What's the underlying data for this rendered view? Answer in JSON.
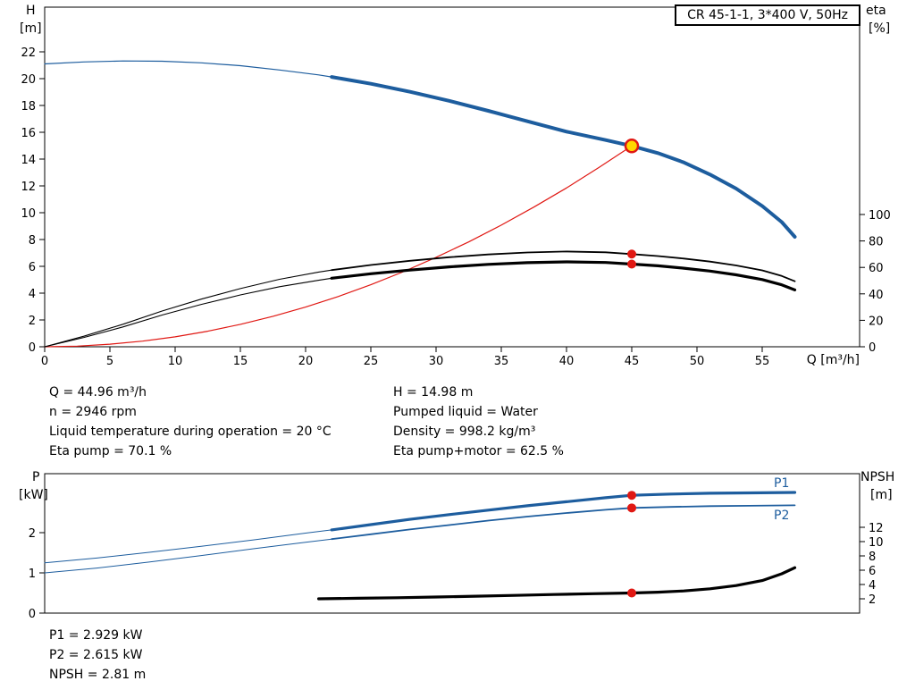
{
  "title_box": {
    "text": "CR 45-1-1, 3*400 V, 50Hz"
  },
  "colors": {
    "blue": "#1d5d9e",
    "black": "#000000",
    "red": "#e01813",
    "duty_fill": "#ffd800",
    "frame": "#000000"
  },
  "axis_labels": {
    "h": "H",
    "h_unit": "[m]",
    "eta": "eta",
    "eta_unit": "[%]",
    "q": "Q [m³/h]",
    "p": "P",
    "p_unit": "[kW]",
    "npsh": "NPSH",
    "npsh_unit": "[m]"
  },
  "info_left": {
    "q": "Q = 44.96 m³/h",
    "n": "n = 2946 rpm",
    "temp": "Liquid temperature during operation = 20 °C",
    "eta_pump": "Eta pump = 70.1 %"
  },
  "info_right": {
    "h": "H = 14.98 m",
    "liquid": "Pumped liquid = Water",
    "density": "Density = 998.2 kg/m³",
    "eta_pump_motor": "Eta pump+motor = 62.5 %"
  },
  "info_bottom": {
    "p1": "P1 = 2.929 kW",
    "p2": "P2 = 2.615 kW",
    "npsh": "NPSH = 2.81 m"
  },
  "curve_labels": {
    "p1": "P1",
    "p2": "P2"
  },
  "operating_point": {
    "q_m3h": 44.96,
    "h_m": 14.98,
    "n_rpm": 2946,
    "eta_pump_pct": 70.1,
    "eta_pump_motor_pct": 62.5,
    "p1_kw": 2.929,
    "p2_kw": 2.615,
    "npsh_m": 2.81,
    "liquid": "Water",
    "temp_c": 20,
    "density_kg_m3": 998.2
  },
  "chart_data": [
    {
      "type": "line",
      "name": "head-efficiency-chart",
      "x_axis": {
        "label": "Q [m³/h]",
        "ticks": [
          0,
          5,
          10,
          15,
          20,
          25,
          30,
          35,
          40,
          45,
          50,
          55
        ],
        "max": 62.5
      },
      "y_left": {
        "label": "H [m]",
        "ticks": [
          0,
          2,
          4,
          6,
          8,
          10,
          12,
          14,
          16,
          18,
          20,
          22
        ],
        "max": 25.3
      },
      "y_right": {
        "label": "eta [%]",
        "ticks": [
          0,
          20,
          40,
          60,
          80,
          100
        ]
      },
      "series": [
        {
          "name": "system-curve",
          "color": "red",
          "axis": "left",
          "thin": 1.2,
          "thick": 1.2,
          "split_q": null,
          "points": [
            [
              0,
              0
            ],
            [
              2.5,
              0.05
            ],
            [
              5,
              0.19
            ],
            [
              7.5,
              0.42
            ],
            [
              10,
              0.74
            ],
            [
              12.5,
              1.16
            ],
            [
              15,
              1.67
            ],
            [
              17.5,
              2.27
            ],
            [
              20,
              2.96
            ],
            [
              22.5,
              3.75
            ],
            [
              25,
              4.63
            ],
            [
              27.5,
              5.6
            ],
            [
              30,
              6.67
            ],
            [
              32.5,
              7.82
            ],
            [
              35,
              9.07
            ],
            [
              37.5,
              10.42
            ],
            [
              40,
              11.85
            ],
            [
              42.5,
              13.38
            ],
            [
              45,
              14.98
            ]
          ]
        },
        {
          "name": "eta-pump",
          "color": "black",
          "axis": "right",
          "thin": 1.1,
          "thick": 1.8,
          "split_q": 22,
          "points": [
            [
              0,
              0
            ],
            [
              3,
              8
            ],
            [
              6,
              17
            ],
            [
              9,
              27
            ],
            [
              12,
              36
            ],
            [
              15,
              44
            ],
            [
              18,
              51
            ],
            [
              21,
              56.5
            ],
            [
              22,
              58
            ],
            [
              25,
              61.8
            ],
            [
              28,
              65
            ],
            [
              31,
              67.7
            ],
            [
              34,
              69.8
            ],
            [
              37,
              71.3
            ],
            [
              40,
              72
            ],
            [
              43,
              71.4
            ],
            [
              45,
              70.1
            ],
            [
              47,
              68.6
            ],
            [
              49,
              66.7
            ],
            [
              51,
              64.4
            ],
            [
              53,
              61.5
            ],
            [
              55,
              57.8
            ],
            [
              56.5,
              53.5
            ],
            [
              57.5,
              49.5
            ]
          ]
        },
        {
          "name": "eta-pump-motor",
          "color": "black",
          "axis": "right",
          "thin": 1.1,
          "thick": 3.2,
          "split_q": 22,
          "points": [
            [
              0,
              0
            ],
            [
              3,
              7
            ],
            [
              6,
              15
            ],
            [
              9,
              24
            ],
            [
              12,
              32
            ],
            [
              15,
              39.2
            ],
            [
              18,
              45.4
            ],
            [
              21,
              50.3
            ],
            [
              22,
              51.8
            ],
            [
              25,
              55.2
            ],
            [
              28,
              58
            ],
            [
              31,
              60.4
            ],
            [
              34,
              62.3
            ],
            [
              37,
              63.6
            ],
            [
              40,
              64.2
            ],
            [
              43,
              63.7
            ],
            [
              45,
              62.5
            ],
            [
              47,
              61.2
            ],
            [
              49,
              59.4
            ],
            [
              51,
              57.2
            ],
            [
              53,
              54.4
            ],
            [
              55,
              50.8
            ],
            [
              56.5,
              46.8
            ],
            [
              57.5,
              43
            ]
          ]
        },
        {
          "name": "head",
          "color": "blue",
          "axis": "left",
          "thin": 1.2,
          "thick": 4,
          "split_q": 22,
          "points": [
            [
              0,
              21.1
            ],
            [
              3,
              21.25
            ],
            [
              6,
              21.32
            ],
            [
              9,
              21.3
            ],
            [
              12,
              21.18
            ],
            [
              15,
              20.97
            ],
            [
              18,
              20.65
            ],
            [
              21,
              20.28
            ],
            [
              22,
              20.13
            ],
            [
              25,
              19.62
            ],
            [
              28,
              19.02
            ],
            [
              31,
              18.35
            ],
            [
              34,
              17.6
            ],
            [
              37,
              16.82
            ],
            [
              40,
              16.05
            ],
            [
              43,
              15.42
            ],
            [
              45,
              14.98
            ],
            [
              47,
              14.45
            ],
            [
              49,
              13.75
            ],
            [
              51,
              12.85
            ],
            [
              53,
              11.8
            ],
            [
              55,
              10.5
            ],
            [
              56.5,
              9.3
            ],
            [
              57.5,
              8.2
            ]
          ]
        }
      ],
      "markers": [
        {
          "style": "duty",
          "q": 45,
          "value": 14.98,
          "axis": "left"
        },
        {
          "style": "dot",
          "q": 45,
          "value": 70.1,
          "axis": "right"
        },
        {
          "style": "dot",
          "q": 45,
          "value": 62.5,
          "axis": "right"
        }
      ]
    },
    {
      "type": "line",
      "name": "power-npsh-chart",
      "x_axis": {
        "label": "Q [m³/h]",
        "ticks": [],
        "max": 62.5
      },
      "y_left": {
        "label": "P [kW]",
        "ticks": [
          0,
          1,
          2
        ],
        "max": 3.5
      },
      "y_right": {
        "label": "NPSH [m]",
        "ticks": [
          2,
          4,
          6,
          8,
          10,
          12
        ]
      },
      "series": [
        {
          "name": "npsh",
          "color": "black",
          "axis": "right",
          "thin": 3.2,
          "thick": 3.2,
          "split_q": null,
          "points": [
            [
              21,
              2.0
            ],
            [
              24,
              2.07
            ],
            [
              27,
              2.15
            ],
            [
              30,
              2.25
            ],
            [
              33,
              2.36
            ],
            [
              36,
              2.48
            ],
            [
              39,
              2.6
            ],
            [
              42,
              2.71
            ],
            [
              45,
              2.81
            ],
            [
              47,
              2.93
            ],
            [
              49,
              3.1
            ],
            [
              51,
              3.4
            ],
            [
              53,
              3.85
            ],
            [
              55,
              4.55
            ],
            [
              56.5,
              5.5
            ],
            [
              57.5,
              6.35
            ]
          ]
        },
        {
          "name": "p2",
          "color": "blue",
          "axis": "left",
          "thin": 1,
          "thick": 1.8,
          "split_q": 22,
          "points": [
            [
              0,
              1.0
            ],
            [
              4,
              1.12
            ],
            [
              8,
              1.27
            ],
            [
              12,
              1.43
            ],
            [
              16,
              1.6
            ],
            [
              20,
              1.76
            ],
            [
              22,
              1.84
            ],
            [
              25,
              1.96
            ],
            [
              28,
              2.08
            ],
            [
              31,
              2.19
            ],
            [
              34,
              2.3
            ],
            [
              37,
              2.4
            ],
            [
              40,
              2.49
            ],
            [
              43,
              2.57
            ],
            [
              45,
              2.615
            ],
            [
              48,
              2.64
            ],
            [
              51,
              2.66
            ],
            [
              54,
              2.67
            ],
            [
              57.5,
              2.68
            ]
          ]
        },
        {
          "name": "p1",
          "color": "blue",
          "axis": "left",
          "thin": 1,
          "thick": 3.2,
          "split_q": 22,
          "points": [
            [
              0,
              1.25
            ],
            [
              4,
              1.37
            ],
            [
              8,
              1.51
            ],
            [
              12,
              1.66
            ],
            [
              16,
              1.82
            ],
            [
              20,
              1.99
            ],
            [
              22,
              2.07
            ],
            [
              25,
              2.2
            ],
            [
              28,
              2.33
            ],
            [
              31,
              2.45
            ],
            [
              34,
              2.56
            ],
            [
              37,
              2.67
            ],
            [
              40,
              2.77
            ],
            [
              43,
              2.87
            ],
            [
              45,
              2.929
            ],
            [
              48,
              2.96
            ],
            [
              51,
              2.98
            ],
            [
              54,
              2.99
            ],
            [
              57.5,
              3.0
            ]
          ]
        }
      ],
      "markers": [
        {
          "style": "dot",
          "q": 45,
          "value": 2.929,
          "axis": "left"
        },
        {
          "style": "dot",
          "q": 45,
          "value": 2.615,
          "axis": "left"
        },
        {
          "style": "dot",
          "q": 45,
          "value": 2.81,
          "axis": "right"
        }
      ]
    }
  ]
}
